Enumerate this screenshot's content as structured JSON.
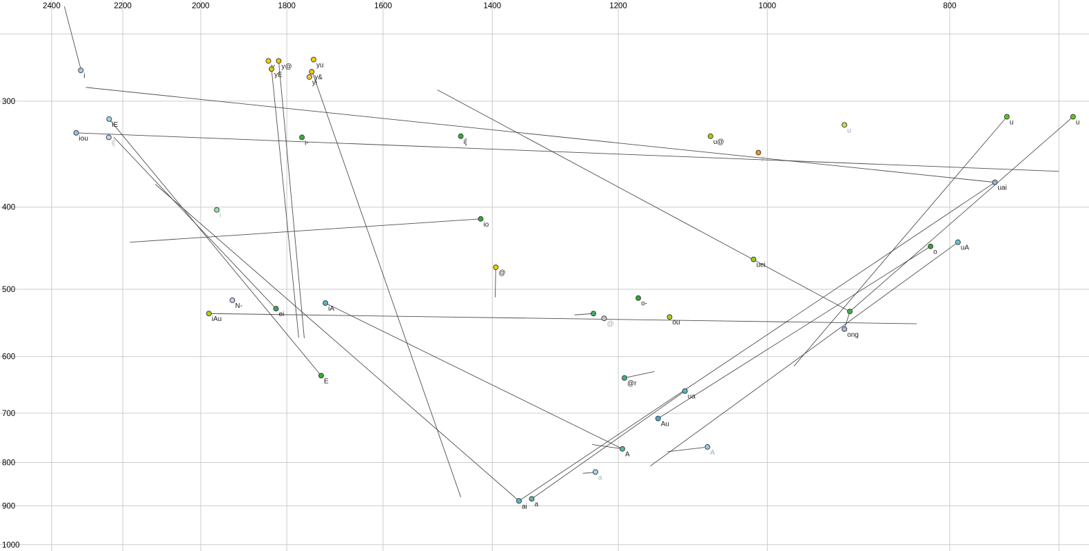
{
  "chart_data": {
    "type": "scatter",
    "title": "",
    "xlabel": "",
    "ylabel": "",
    "x_axis": {
      "scale": "log",
      "reversed": true,
      "labeled_ticks": [
        2400,
        2200,
        2000,
        1800,
        1600,
        1400,
        1200,
        1000,
        800
      ],
      "unlabeled_ticks": [
        700
      ],
      "range": [
        2500,
        680
      ]
    },
    "y_axis": {
      "scale": "log",
      "increases_downward": true,
      "labeled_ticks": [
        300,
        400,
        500,
        600,
        700,
        800,
        900,
        1000
      ],
      "unlabeled_ticks": [
        250
      ],
      "range": [
        230,
        1000
      ]
    },
    "grid": true,
    "colors": {
      "grid": "#cccccc",
      "tick_label": "#000000",
      "trajectory": "#3a3a3a",
      "point_stroke": "#404040",
      "dark_label": "#1a1a1a"
    },
    "points": [
      {
        "label": "i",
        "f2": 2316,
        "f1": 276,
        "fill": "#a8c8f0",
        "label_color": "#1a1a1a"
      },
      {
        "label": "iE",
        "f2": 2237,
        "f1": 315,
        "fill": "#a0d8e8",
        "label_color": "#1a1a1a"
      },
      {
        "label": "iou",
        "f2": 2329,
        "f1": 327,
        "fill": "#90c4ec",
        "label_color": "#1a1a1a"
      },
      {
        "label": "i[",
        "f2": 2238,
        "f1": 331,
        "fill": "#c0d8f0",
        "label_color": "#a0b0c4"
      },
      {
        "label": "y",
        "f2": 1841,
        "f1": 269,
        "fill": "#ffcc00",
        "label_color": "#1a1a1a"
      },
      {
        "label": "y@",
        "f2": 1818,
        "f1": 269,
        "fill": "#ffc000",
        "label_color": "#1a1a1a"
      },
      {
        "label": "yu",
        "f2": 1742,
        "f1": 268,
        "fill": "#ffcc00",
        "label_color": "#1a1a1a"
      },
      {
        "label": "yE",
        "f2": 1834,
        "f1": 275,
        "fill": "#e0cc00",
        "label_color": "#1a1a1a"
      },
      {
        "label": "y&",
        "f2": 1746,
        "f1": 277,
        "fill": "#f0c800",
        "label_color": "#1a1a1a"
      },
      {
        "label": "yi",
        "f2": 1751,
        "f1": 281,
        "fill": "#ffc830",
        "label_color": "#1a1a1a"
      },
      {
        "label": "i-",
        "f2": 1767,
        "f1": 331,
        "fill": "#38b038",
        "label_color": "#1a1a1a"
      },
      {
        "label": "i[",
        "f2": 1455,
        "f1": 330,
        "fill": "#30b030",
        "label_color": "#1a1a1a"
      },
      {
        "label": "i",
        "f2": 1961,
        "f1": 403,
        "fill": "#98e0b0",
        "label_color": "#98c8a8"
      },
      {
        "label": "io",
        "f2": 1420,
        "f1": 413,
        "fill": "#30a830",
        "label_color": "#1a1a1a"
      },
      {
        "label": "u@",
        "f2": 1072,
        "f1": 330,
        "fill": "#b0cc00",
        "label_color": "#1a1a1a"
      },
      {
        "label": "y",
        "f2": 1011,
        "f1": 345,
        "fill": "#ff9010",
        "label_color": "#b0a898"
      },
      {
        "label": "u",
        "f2": 910,
        "f1": 320,
        "fill": "#cce040",
        "label_color": "#98a0c8"
      },
      {
        "label": "u",
        "f2": 746,
        "f1": 313,
        "fill": "#58cc10",
        "label_color": "#1a1a1a"
      },
      {
        "label": "u",
        "f2": 688,
        "f1": 313,
        "fill": "#58cc10",
        "label_color": "#1a1a1a"
      },
      {
        "label": "uai",
        "f2": 757,
        "f1": 374,
        "fill": "#88b8e0",
        "label_color": "#1a1a1a"
      },
      {
        "label": "uei",
        "f2": 1017,
        "f1": 461,
        "fill": "#98cc10",
        "label_color": "#1a1a1a"
      },
      {
        "label": "o",
        "f2": 819,
        "f1": 445,
        "fill": "#30a830",
        "label_color": "#1a1a1a"
      },
      {
        "label": "uA",
        "f2": 792,
        "f1": 440,
        "fill": "#60c8d8",
        "label_color": "#1a1a1a"
      },
      {
        "label": "@",
        "f2": 1394,
        "f1": 471,
        "fill": "#f0cc00",
        "label_color": "#1a1a1a"
      },
      {
        "label": "@",
        "f2": 1221,
        "f1": 541,
        "fill": "#c8c8c8",
        "label_color": "#a8a8a8"
      },
      {
        "label": "",
        "f2": 1237,
        "f1": 534,
        "fill": "#40b060",
        "label_color": "#1a1a1a"
      },
      {
        "label": "N-",
        "f2": 1924,
        "f1": 515,
        "fill": "#ccccee",
        "label_color": "#1a1a1a"
      },
      {
        "label": "ei",
        "f2": 1824,
        "f1": 527,
        "fill": "#38a858",
        "label_color": "#1a1a1a"
      },
      {
        "label": "iA",
        "f2": 1717,
        "f1": 519,
        "fill": "#50b8cc",
        "label_color": "#1a1a1a"
      },
      {
        "label": "iAu",
        "f2": 1980,
        "f1": 534,
        "fill": "#b0cc10",
        "label_color": "#1a1a1a"
      },
      {
        "label": "o-",
        "f2": 1171,
        "f1": 512,
        "fill": "#30a830",
        "label_color": "#1a1a1a"
      },
      {
        "label": "ou",
        "f2": 1127,
        "f1": 539,
        "fill": "#b0cc10",
        "label_color": "#1a1a1a"
      },
      {
        "label": "ong",
        "f2": 910,
        "f1": 557,
        "fill": "#a8b8dc",
        "label_color": "#1a1a1a"
      },
      {
        "label": "",
        "f2": 904,
        "f1": 531,
        "fill": "#40b040",
        "label_color": "#1a1a1a"
      },
      {
        "label": "E",
        "f2": 1726,
        "f1": 632,
        "fill": "#30b030",
        "label_color": "#1a1a1a"
      },
      {
        "label": "@r",
        "f2": 1191,
        "f1": 636,
        "fill": "#40b088",
        "label_color": "#1a1a1a"
      },
      {
        "label": "ua",
        "f2": 1106,
        "f1": 659,
        "fill": "#50b8cc",
        "label_color": "#1a1a1a"
      },
      {
        "label": "Au",
        "f2": 1143,
        "f1": 710,
        "fill": "#48a8cc",
        "label_color": "#1a1a1a"
      },
      {
        "label": "A",
        "f2": 1194,
        "f1": 771,
        "fill": "#50b8a8",
        "label_color": "#1a1a1a"
      },
      {
        "label": "A",
        "f2": 1076,
        "f1": 767,
        "fill": "#98c8ec",
        "label_color": "#98a8c0"
      },
      {
        "label": "a",
        "f2": 1234,
        "f1": 821,
        "fill": "#a0d8e8",
        "label_color": "#90b8c8"
      },
      {
        "label": "ai",
        "f2": 1355,
        "f1": 888,
        "fill": "#50b8cc",
        "label_color": "#1a1a1a"
      },
      {
        "label": "a",
        "f2": 1334,
        "f1": 883,
        "fill": "#58b898",
        "label_color": "#1a1a1a"
      }
    ],
    "segments": [
      {
        "from": [
          2363,
          232
        ],
        "to": [
          2316,
          275
        ]
      },
      {
        "from": [
          2302,
          289
        ],
        "to": [
          757,
          374
        ]
      },
      {
        "from": [
          2329,
          327
        ],
        "to": [
          700,
          363
        ]
      },
      {
        "from": [
          2237,
          315
        ],
        "to": [
          1726,
          632
        ]
      },
      {
        "from": [
          1824,
          527
        ],
        "to": [
          2224,
          331
        ]
      },
      {
        "from": [
          1818,
          269
        ],
        "to": [
          1762,
          571
        ]
      },
      {
        "from": [
          1834,
          275
        ],
        "to": [
          1774,
          570
        ]
      },
      {
        "from": [
          1747,
          275
        ],
        "to": [
          1455,
          879
        ]
      },
      {
        "from": [
          757,
          374
        ],
        "to": [
          1355,
          888
        ]
      },
      {
        "from": [
          1355,
          888
        ],
        "to": [
          2114,
          376
        ]
      },
      {
        "from": [
          1980,
          534
        ],
        "to": [
          833,
          549
        ]
      },
      {
        "from": [
          1717,
          519
        ],
        "to": [
          1194,
          771
        ]
      },
      {
        "from": [
          792,
          440
        ],
        "to": [
          1154,
          808
        ]
      },
      {
        "from": [
          1106,
          659
        ],
        "to": [
          1334,
          883
        ]
      },
      {
        "from": [
          746,
          313
        ],
        "to": [
          968,
          616
        ]
      },
      {
        "from": [
          688,
          313
        ],
        "to": [
          904,
          531
        ]
      },
      {
        "from": [
          1497,
          291
        ],
        "to": [
          904,
          531
        ]
      },
      {
        "from": [
          2181,
          440
        ],
        "to": [
          1420,
          413
        ]
      },
      {
        "from": [
          910,
          557
        ],
        "to": [
          904,
          531
        ]
      },
      {
        "from": [
          1266,
          536
        ],
        "to": [
          1237,
          534
        ]
      },
      {
        "from": [
          1394,
          471
        ],
        "to": [
          1395,
          511
        ]
      },
      {
        "from": [
          1191,
          636
        ],
        "to": [
          1148,
          625
        ]
      },
      {
        "from": [
          1239,
          762
        ],
        "to": [
          1194,
          771
        ]
      },
      {
        "from": [
          1253,
          824
        ],
        "to": [
          1237,
          822
        ]
      },
      {
        "from": [
          1130,
          777
        ],
        "to": [
          1080,
          768
        ]
      },
      {
        "from": [
          1143,
          710
        ],
        "to": [
          819,
          445
        ]
      }
    ]
  }
}
